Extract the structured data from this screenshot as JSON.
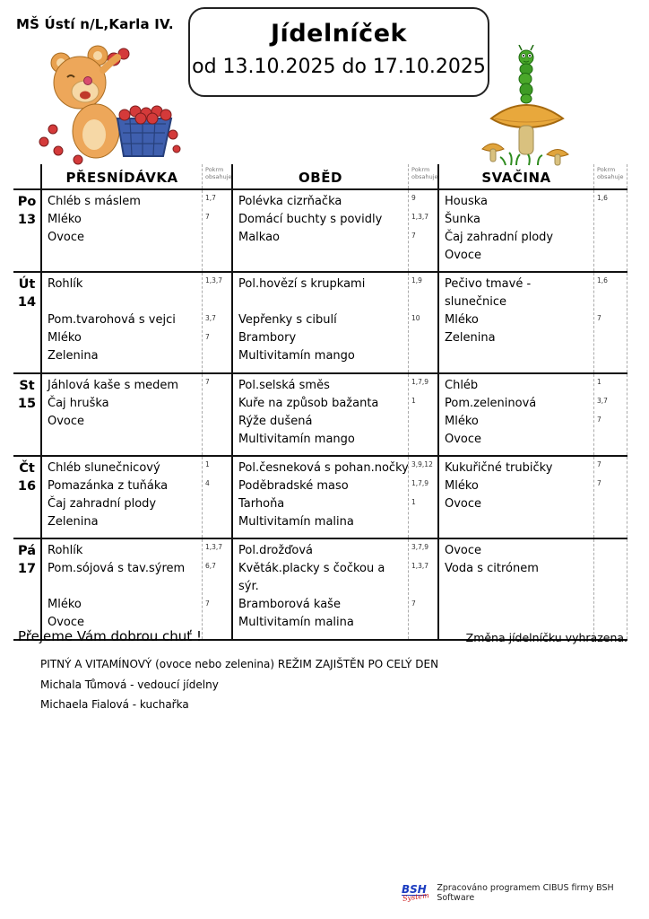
{
  "page": {
    "school": "MŠ Ústí n/L,Karla IV.",
    "title": "Jídelníček",
    "date_range": "od 13.10.2025 do 17.10.2025"
  },
  "table": {
    "headers": {
      "snack_morning": "PŘESNÍDÁVKA",
      "lunch": "OBĚD",
      "snack_afternoon": "SVAČINA",
      "allergen_label": "Pokrm obsahuje"
    },
    "days": [
      {
        "abbr": "Po",
        "num": "13",
        "cols": [
          [
            {
              "t": "Chléb s máslem",
              "a": "1,7"
            },
            {
              "t": "Mléko",
              "a": "7"
            },
            {
              "t": "Ovoce",
              "a": ""
            },
            {
              "t": "",
              "a": ""
            }
          ],
          [
            {
              "t": "Polévka cizrňačka",
              "a": "9"
            },
            {
              "t": "Domácí buchty s povidly",
              "a": "1,3,7"
            },
            {
              "t": "Malkao",
              "a": "7"
            },
            {
              "t": "",
              "a": ""
            }
          ],
          [
            {
              "t": "Houska",
              "a": "1,6"
            },
            {
              "t": "Šunka",
              "a": ""
            },
            {
              "t": "Čaj zahradní plody",
              "a": ""
            },
            {
              "t": "Ovoce",
              "a": ""
            }
          ]
        ]
      },
      {
        "abbr": "Út",
        "num": "14",
        "cols": [
          [
            {
              "t": "Rohlík",
              "a": "1,3,7"
            },
            {
              "t": "",
              "a": ""
            },
            {
              "t": "Pom.tvarohová s vejci",
              "a": "3,7"
            },
            {
              "t": "Mléko",
              "a": "7"
            },
            {
              "t": "Zelenina",
              "a": ""
            }
          ],
          [
            {
              "t": "Pol.hovězí s krupkami",
              "a": "1,9"
            },
            {
              "t": "",
              "a": ""
            },
            {
              "t": "Vepřenky s cibulí",
              "a": "10"
            },
            {
              "t": "Brambory",
              "a": ""
            },
            {
              "t": "Multivitamín mango",
              "a": ""
            }
          ],
          [
            {
              "t": "Pečivo tmavé -",
              "a": "1,6"
            },
            {
              "t": "slunečnice",
              "a": ""
            },
            {
              "t": "Mléko",
              "a": "7"
            },
            {
              "t": "Zelenina",
              "a": ""
            },
            {
              "t": "",
              "a": ""
            }
          ]
        ]
      },
      {
        "abbr": "St",
        "num": "15",
        "cols": [
          [
            {
              "t": "Jáhlová kaše s medem",
              "a": "7"
            },
            {
              "t": "Čaj hruška",
              "a": ""
            },
            {
              "t": "Ovoce",
              "a": ""
            },
            {
              "t": "",
              "a": ""
            }
          ],
          [
            {
              "t": "Pol.selská směs",
              "a": "1,7,9"
            },
            {
              "t": "Kuře na způsob bažanta",
              "a": "1"
            },
            {
              "t": "Rýže dušená",
              "a": ""
            },
            {
              "t": "Multivitamín mango",
              "a": ""
            }
          ],
          [
            {
              "t": "Chléb",
              "a": "1"
            },
            {
              "t": "Pom.zeleninová",
              "a": "3,7"
            },
            {
              "t": "Mléko",
              "a": "7"
            },
            {
              "t": "Ovoce",
              "a": ""
            }
          ]
        ]
      },
      {
        "abbr": "Čt",
        "num": "16",
        "cols": [
          [
            {
              "t": "Chléb slunečnicový",
              "a": "1"
            },
            {
              "t": "Pomazánka z tuňáka",
              "a": "4"
            },
            {
              "t": "Čaj zahradní plody",
              "a": ""
            },
            {
              "t": "Zelenina",
              "a": ""
            }
          ],
          [
            {
              "t": "Pol.česneková s pohan.nočky",
              "a": "3,9,12"
            },
            {
              "t": "Poděbradské maso",
              "a": "1,7,9"
            },
            {
              "t": "Tarhoňa",
              "a": "1"
            },
            {
              "t": "Multivitamín malina",
              "a": ""
            }
          ],
          [
            {
              "t": "Kukuřičné trubičky",
              "a": "7"
            },
            {
              "t": "Mléko",
              "a": "7"
            },
            {
              "t": "Ovoce",
              "a": ""
            },
            {
              "t": "",
              "a": ""
            }
          ]
        ]
      },
      {
        "abbr": "Pá",
        "num": "17",
        "cols": [
          [
            {
              "t": "Rohlík",
              "a": "1,3,7"
            },
            {
              "t": "Pom.sójová s tav.sýrem",
              "a": "6,7"
            },
            {
              "t": "",
              "a": ""
            },
            {
              "t": "Mléko",
              "a": "7"
            },
            {
              "t": "Ovoce",
              "a": ""
            }
          ],
          [
            {
              "t": "Pol.drožďová",
              "a": "3,7,9"
            },
            {
              "t": "Květák.placky s čočkou a",
              "a": "1,3,7"
            },
            {
              "t": "sýr.",
              "a": ""
            },
            {
              "t": "Bramborová kaše",
              "a": "7"
            },
            {
              "t": "Multivitamín malina",
              "a": ""
            }
          ],
          [
            {
              "t": "Ovoce",
              "a": ""
            },
            {
              "t": "Voda s citrónem",
              "a": ""
            },
            {
              "t": "",
              "a": ""
            },
            {
              "t": "",
              "a": ""
            },
            {
              "t": "",
              "a": ""
            }
          ]
        ]
      }
    ]
  },
  "footer": {
    "wish": "Přejeme Vám dobrou chuť !",
    "change_note": "Změna jídelníčku vyhrazena.",
    "regime_note": "PITNÝ A VITAMÍNOVÝ (ovoce nebo zelenina) REŽIM ZAJIŠTĚN PO CELÝ DEN",
    "manager": "Michala Tůmová - vedoucí jídelny",
    "cook": "Michaela Fialová - kuchařka"
  },
  "credit": {
    "logo_text": "BSH",
    "logo_sub": "System",
    "text": "Zpracováno programem CIBUS firmy BSH Software"
  },
  "colors": {
    "logo_blue": "#1a3bc0",
    "logo_red": "#cc1111",
    "border_black": "#111111",
    "allergen_gray": "#777777"
  }
}
